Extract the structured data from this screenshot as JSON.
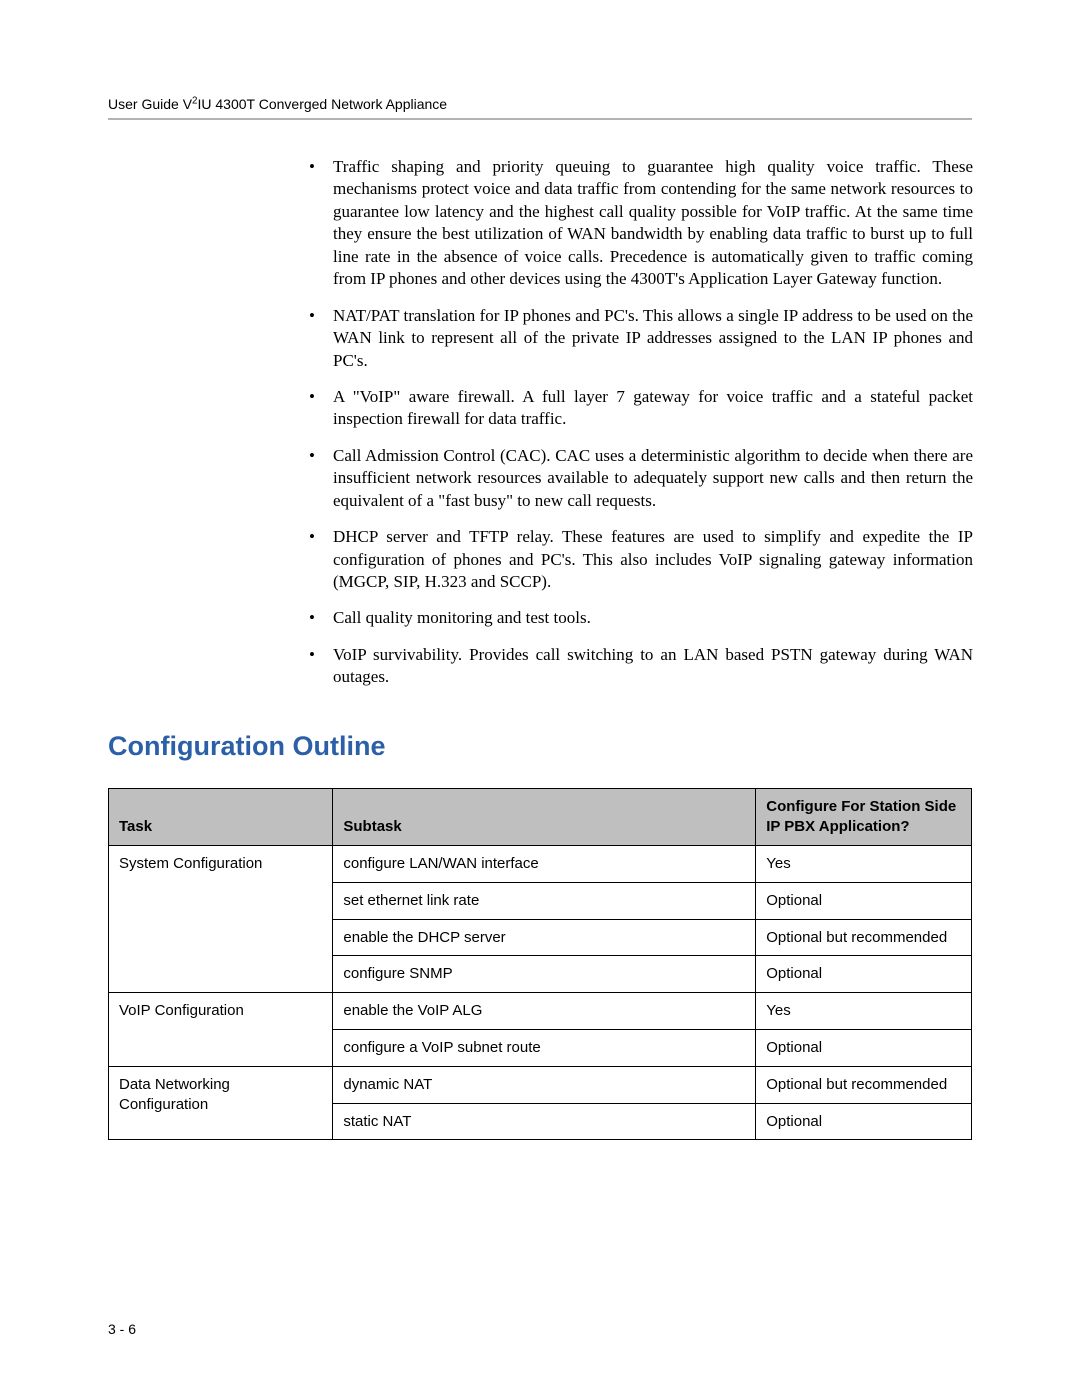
{
  "header": {
    "running_head_html": "User Guide V<sup>2</sup>IU 4300T Converged Network Appliance"
  },
  "bullets": [
    "Traffic shaping and priority queuing to guarantee high quality voice traffic.  These mechanisms protect voice and data traffic from contending for the same network resources to guarantee low latency and the highest call quality possible for VoIP traffic.  At the same time they ensure the best utilization of WAN bandwidth by enabling data traffic to burst up to full line rate in the absence of voice calls.  Precedence is automatically given to traffic coming from IP phones and other devices using the 4300T's Application Layer Gateway function.",
    "NAT/PAT translation for IP phones and PC's.  This allows a single IP address to be used on the WAN link to represent all of the private IP addresses assigned to the LAN IP phones and PC's.",
    "A \"VoIP\" aware firewall.  A full layer 7 gateway for voice traffic and a stateful packet inspection firewall for data traffic.",
    "Call Admission Control (CAC). CAC uses a deterministic algorithm to decide when there are insufficient network resources available to adequately support new calls and then return the equivalent of a \"fast busy\" to new call requests.",
    "DHCP server and TFTP relay.  These features are used to simplify and expedite the IP configuration of phones and PC's.  This also includes VoIP signaling gateway information (MGCP, SIP, H.323 and SCCP).",
    "Call quality monitoring and test tools.",
    "VoIP survivability.  Provides call switching to an LAN based PSTN gateway during WAN outages."
  ],
  "section_heading": "Configuration Outline",
  "table": {
    "col_widths": [
      "26%",
      "49%",
      "25%"
    ],
    "headers": [
      "Task",
      "Subtask",
      "Configure For Station Side IP PBX Application?"
    ],
    "groups": [
      {
        "task": "System Configuration",
        "rows": [
          {
            "subtask": "configure LAN/WAN interface",
            "value": "Yes"
          },
          {
            "subtask": "set ethernet link rate",
            "value": "Optional"
          },
          {
            "subtask": "enable the DHCP server",
            "value": "Optional but recommended"
          },
          {
            "subtask": "configure SNMP",
            "value": "Optional"
          }
        ]
      },
      {
        "task": "VoIP Configuration",
        "rows": [
          {
            "subtask": "enable the VoIP ALG",
            "value": "Yes"
          },
          {
            "subtask": "configure a VoIP subnet route",
            "value": "Optional"
          }
        ]
      },
      {
        "task": "Data Networking Configuration",
        "rows": [
          {
            "subtask": "dynamic NAT",
            "value": "Optional but recommended"
          },
          {
            "subtask": "static NAT",
            "value": "Optional"
          }
        ]
      }
    ]
  },
  "footer": {
    "page_number": "3 - 6"
  },
  "colors": {
    "heading": "#2b5fa8",
    "rule": "#b3b3b3",
    "th_bg": "#bfbfbf",
    "text": "#000000",
    "background": "#ffffff"
  }
}
